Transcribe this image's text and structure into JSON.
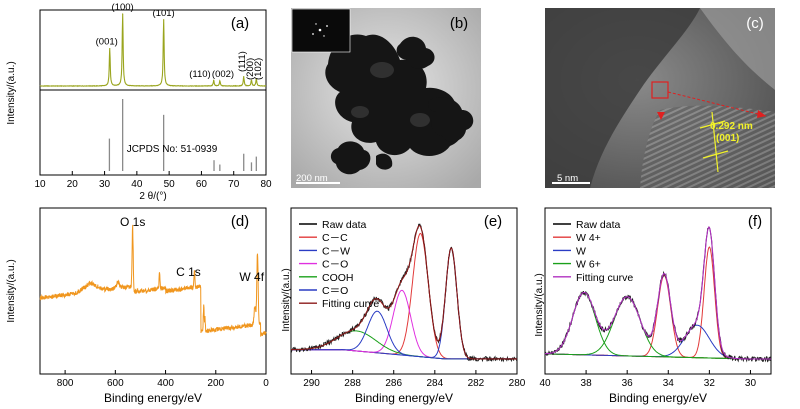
{
  "chart_data": [
    {
      "panel": "(a)",
      "type": "line",
      "xlabel": "2 θ/(°)",
      "ylabel": "Intensity/(a.u.)",
      "xlim": [
        10,
        80
      ],
      "xticks": [
        "10",
        "20",
        "30",
        "40",
        "50",
        "60",
        "70",
        "80"
      ],
      "series": [
        {
          "color": "#9aa51e",
          "peaks": [
            {
              "x": 31.6,
              "h": 0.52,
              "label": "(001)"
            },
            {
              "x": 35.6,
              "h": 1.0,
              "label": "(100)"
            },
            {
              "x": 48.3,
              "h": 0.92,
              "label": "(101)"
            },
            {
              "x": 63.8,
              "h": 0.08,
              "label": "(110)"
            },
            {
              "x": 65.7,
              "h": 0.07,
              "label": "(002)"
            },
            {
              "x": 73.1,
              "h": 0.13,
              "label": "(111)"
            },
            {
              "x": 75.5,
              "h": 0.08,
              "label": "(200)"
            },
            {
              "x": 77.0,
              "h": 0.1,
              "label": "(102)"
            }
          ]
        }
      ],
      "reference": {
        "label": "JCPDS No: 51-0939",
        "lines": [
          {
            "x": 31.5,
            "h": 0.45
          },
          {
            "x": 35.6,
            "h": 1.0
          },
          {
            "x": 48.3,
            "h": 0.78
          },
          {
            "x": 63.9,
            "h": 0.15
          },
          {
            "x": 65.7,
            "h": 0.09
          },
          {
            "x": 73.1,
            "h": 0.24
          },
          {
            "x": 75.5,
            "h": 0.12
          },
          {
            "x": 77.0,
            "h": 0.2
          }
        ]
      }
    },
    {
      "panel": "(b)",
      "type": "image",
      "scale_bar": "200 nm"
    },
    {
      "panel": "(c)",
      "type": "image",
      "scale_bar": "5 nm",
      "annotations": [
        "0.292 nm",
        "(001)"
      ]
    },
    {
      "panel": "(d)",
      "type": "line",
      "xlabel": "Binding energy/eV",
      "ylabel": "Intensity/(a.u.)",
      "xlim": [
        900,
        0
      ],
      "xticks": [
        "800",
        "600",
        "400",
        "200",
        "0"
      ],
      "series": [
        {
          "color": "#f0961e"
        }
      ],
      "peak_labels": [
        {
          "x": 531,
          "label": "O 1s"
        },
        {
          "x": 285,
          "label": "C 1s"
        },
        {
          "x": 33,
          "label": "W 4f"
        }
      ]
    },
    {
      "panel": "(e)",
      "type": "line",
      "xlabel": "Binding energy/eV",
      "ylabel": "Intensity/(a.u.)",
      "xlim": [
        291,
        280
      ],
      "xticks": [
        "290",
        "288",
        "286",
        "284",
        "282",
        "280"
      ],
      "legend": [
        {
          "label": "Raw data",
          "color": "#000000"
        },
        {
          "label": "C－C",
          "color": "#e23a3a"
        },
        {
          "label": "C－W",
          "color": "#2a3cc4"
        },
        {
          "label": "C－O",
          "color": "#e030e0"
        },
        {
          "label": "COOH",
          "color": "#1aa01a"
        },
        {
          "label": "C＝O",
          "color": "#2a3cc4"
        },
        {
          "label": "Fitting curve",
          "color": "#8b1a1a"
        }
      ],
      "components": [
        {
          "label": "C－C",
          "center": 284.7,
          "height": 0.8,
          "fwhm": 0.9
        },
        {
          "label": "C－W",
          "center": 283.2,
          "height": 0.72,
          "fwhm": 0.65
        },
        {
          "label": "C－O",
          "center": 285.6,
          "height": 0.42,
          "fwhm": 1.0
        },
        {
          "label": "COOH",
          "center": 287.8,
          "height": 0.13,
          "fwhm": 2.2
        },
        {
          "label": "C＝O",
          "center": 286.8,
          "height": 0.27,
          "fwhm": 1.1
        }
      ]
    },
    {
      "panel": "(f)",
      "type": "line",
      "xlabel": "Binding energy/eV",
      "ylabel": "Intensity/(a.u.)",
      "xlim": [
        40,
        29
      ],
      "xticks": [
        "40",
        "38",
        "36",
        "34",
        "32",
        "30"
      ],
      "legend": [
        {
          "label": "Raw data",
          "color": "#000000"
        },
        {
          "label": "W 4+",
          "color": "#e23a3a"
        },
        {
          "label": "W",
          "color": "#2a3cc4"
        },
        {
          "label": "W 6+",
          "color": "#1aa01a"
        },
        {
          "label": "Fitting curve",
          "color": "#b030c0"
        }
      ],
      "components": [
        {
          "label": "W 4+",
          "center": 34.2,
          "height": 0.55,
          "fwhm": 0.75
        },
        {
          "label": "W 4+",
          "center": 32.0,
          "height": 0.75,
          "fwhm": 0.6
        },
        {
          "label": "W",
          "center": 32.6,
          "height": 0.22,
          "fwhm": 1.4
        },
        {
          "label": "W 6+",
          "center": 36.0,
          "height": 0.4,
          "fwhm": 1.5
        },
        {
          "label": "W 6+",
          "center": 38.1,
          "height": 0.42,
          "fwhm": 1.3
        }
      ]
    }
  ]
}
